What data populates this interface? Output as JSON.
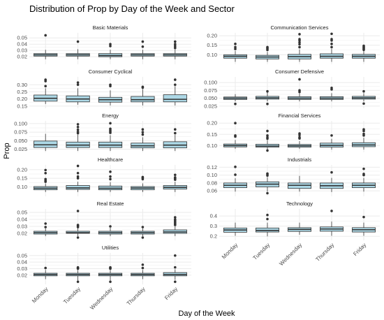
{
  "chart_data": {
    "type": "boxplot",
    "title": "Distribution of Prop by Day of the Week and Sector",
    "xlabel": "Day of the Week",
    "ylabel": "Prop",
    "categories": [
      "Monday",
      "Tuesday",
      "Wednesday",
      "Thursday",
      "Friday"
    ],
    "colors": {
      "box_fill": "#add8e6",
      "box_stroke": "#333333",
      "grid": "#ebebeb",
      "strip_text": "#1a1a1a",
      "axis_text": "#4d4d4d"
    },
    "panels": [
      {
        "sector": "Basic Materials",
        "ylim": [
          0.008,
          0.058
        ],
        "yticks": [
          {
            "v": 0.02,
            "label": "0.02"
          },
          {
            "v": 0.03,
            "label": "0.03"
          },
          {
            "v": 0.04,
            "label": "0.04"
          },
          {
            "v": 0.05,
            "label": "0.05"
          }
        ],
        "boxes": [
          {
            "min": 0.016,
            "q1": 0.021,
            "median": 0.023,
            "q3": 0.025,
            "max": 0.031,
            "outliers": [
              0.054
            ]
          },
          {
            "min": 0.016,
            "q1": 0.021,
            "median": 0.023,
            "q3": 0.025,
            "max": 0.032,
            "outliers": [
              0.044
            ]
          },
          {
            "min": 0.016,
            "q1": 0.02,
            "median": 0.022,
            "q3": 0.025,
            "max": 0.031,
            "outliers": [
              0.037,
              0.04
            ]
          },
          {
            "min": 0.016,
            "q1": 0.021,
            "median": 0.023,
            "q3": 0.025,
            "max": 0.031,
            "outliers": [
              0.036,
              0.044
            ]
          },
          {
            "min": 0.016,
            "q1": 0.021,
            "median": 0.023,
            "q3": 0.025,
            "max": 0.032,
            "outliers": [
              0.034,
              0.037,
              0.04,
              0.044
            ]
          }
        ]
      },
      {
        "sector": "Communication Services",
        "ylim": [
          0.05,
          0.215
        ],
        "yticks": [
          {
            "v": 0.1,
            "label": "0.10"
          },
          {
            "v": 0.15,
            "label": "0.15"
          },
          {
            "v": 0.2,
            "label": "0.20"
          }
        ],
        "boxes": [
          {
            "min": 0.063,
            "q1": 0.082,
            "median": 0.092,
            "q3": 0.1,
            "max": 0.12,
            "outliers": [
              0.13,
              0.14,
              0.157
            ]
          },
          {
            "min": 0.063,
            "q1": 0.078,
            "median": 0.088,
            "q3": 0.097,
            "max": 0.115,
            "outliers": [
              0.125,
              0.131,
              0.136,
              0.14
            ]
          },
          {
            "min": 0.063,
            "q1": 0.078,
            "median": 0.09,
            "q3": 0.102,
            "max": 0.128,
            "outliers": [
              0.14,
              0.155,
              0.165,
              0.175,
              0.182,
              0.208
            ]
          },
          {
            "min": 0.063,
            "q1": 0.082,
            "median": 0.092,
            "q3": 0.105,
            "max": 0.13,
            "outliers": [
              0.14,
              0.157,
              0.175,
              0.182,
              0.21
            ]
          },
          {
            "min": 0.063,
            "q1": 0.082,
            "median": 0.092,
            "q3": 0.102,
            "max": 0.122,
            "outliers": [
              0.126,
              0.131,
              0.136,
              0.141,
              0.147
            ]
          }
        ]
      },
      {
        "sector": "Consumer Cyclical",
        "ylim": [
          0.135,
          0.355
        ],
        "yticks": [
          {
            "v": 0.15,
            "label": "0.15"
          },
          {
            "v": 0.2,
            "label": "0.20"
          },
          {
            "v": 0.25,
            "label": "0.25"
          },
          {
            "v": 0.3,
            "label": "0.30"
          }
        ],
        "boxes": [
          {
            "min": 0.165,
            "q1": 0.185,
            "median": 0.205,
            "q3": 0.228,
            "max": 0.275,
            "outliers": [
              0.29,
              0.325,
              0.335
            ]
          },
          {
            "min": 0.16,
            "q1": 0.18,
            "median": 0.2,
            "q3": 0.222,
            "max": 0.275,
            "outliers": [
              0.3,
              0.315
            ]
          },
          {
            "min": 0.155,
            "q1": 0.178,
            "median": 0.195,
            "q3": 0.212,
            "max": 0.26,
            "outliers": [
              0.29,
              0.3
            ]
          },
          {
            "min": 0.155,
            "q1": 0.18,
            "median": 0.195,
            "q3": 0.218,
            "max": 0.27,
            "outliers": [
              0.28,
              0.285
            ]
          },
          {
            "min": 0.155,
            "q1": 0.18,
            "median": 0.198,
            "q3": 0.23,
            "max": 0.29,
            "outliers": [
              0.3,
              0.335
            ]
          }
        ]
      },
      {
        "sector": "Consumer Defensive",
        "ylim": [
          0.018,
          0.118
        ],
        "yticks": [
          {
            "v": 0.025,
            "label": "0.025"
          },
          {
            "v": 0.05,
            "label": "0.050"
          },
          {
            "v": 0.075,
            "label": "0.075"
          },
          {
            "v": 0.1,
            "label": "0.100"
          }
        ],
        "boxes": [
          {
            "min": 0.04,
            "q1": 0.046,
            "median": 0.05,
            "q3": 0.054,
            "max": 0.063,
            "outliers": [
              0.032
            ]
          },
          {
            "min": 0.04,
            "q1": 0.047,
            "median": 0.051,
            "q3": 0.056,
            "max": 0.068,
            "outliers": [
              0.072,
              0.032
            ]
          },
          {
            "min": 0.04,
            "q1": 0.046,
            "median": 0.05,
            "q3": 0.055,
            "max": 0.066,
            "outliers": [
              0.07,
              0.075,
              0.11
            ]
          },
          {
            "min": 0.04,
            "q1": 0.046,
            "median": 0.05,
            "q3": 0.055,
            "max": 0.066,
            "outliers": [
              0.078,
              0.083
            ]
          },
          {
            "min": 0.04,
            "q1": 0.047,
            "median": 0.051,
            "q3": 0.056,
            "max": 0.066,
            "outliers": [
              0.072,
              0.033
            ]
          }
        ]
      },
      {
        "sector": "Energy",
        "ylim": [
          0.016,
          0.108
        ],
        "yticks": [
          {
            "v": 0.025,
            "label": "0.025"
          },
          {
            "v": 0.05,
            "label": "0.050"
          },
          {
            "v": 0.075,
            "label": "0.075"
          },
          {
            "v": 0.1,
            "label": "0.100"
          }
        ],
        "boxes": [
          {
            "min": 0.02,
            "q1": 0.03,
            "median": 0.038,
            "q3": 0.049,
            "max": 0.07,
            "outliers": []
          },
          {
            "min": 0.02,
            "q1": 0.03,
            "median": 0.037,
            "q3": 0.046,
            "max": 0.068,
            "outliers": [
              0.072,
              0.076,
              0.082,
              0.09,
              0.098
            ]
          },
          {
            "min": 0.02,
            "q1": 0.03,
            "median": 0.037,
            "q3": 0.046,
            "max": 0.066,
            "outliers": [
              0.073,
              0.077,
              0.081,
              0.085,
              0.101
            ]
          },
          {
            "min": 0.02,
            "q1": 0.029,
            "median": 0.035,
            "q3": 0.043,
            "max": 0.06,
            "outliers": [
              0.068,
              0.075,
              0.083
            ]
          },
          {
            "min": 0.02,
            "q1": 0.029,
            "median": 0.037,
            "q3": 0.047,
            "max": 0.067,
            "outliers": [
              0.072,
              0.083
            ]
          }
        ]
      },
      {
        "sector": "Financial Services",
        "ylim": [
          0.07,
          0.21
        ],
        "yticks": [
          {
            "v": 0.1,
            "label": "0.10"
          },
          {
            "v": 0.15,
            "label": "0.15"
          },
          {
            "v": 0.2,
            "label": "0.20"
          }
        ],
        "boxes": [
          {
            "min": 0.085,
            "q1": 0.094,
            "median": 0.1,
            "q3": 0.107,
            "max": 0.125,
            "outliers": [
              0.14,
              0.145,
              0.2
            ]
          },
          {
            "min": 0.082,
            "q1": 0.093,
            "median": 0.098,
            "q3": 0.106,
            "max": 0.125,
            "outliers": [
              0.131,
              0.137,
              0.145,
              0.165,
              0.078
            ]
          },
          {
            "min": 0.085,
            "q1": 0.093,
            "median": 0.099,
            "q3": 0.105,
            "max": 0.12,
            "outliers": [
              0.132,
              0.137,
              0.147,
              0.154
            ]
          },
          {
            "min": 0.082,
            "q1": 0.093,
            "median": 0.101,
            "q3": 0.111,
            "max": 0.13,
            "outliers": [
              0.145
            ]
          },
          {
            "min": 0.082,
            "q1": 0.095,
            "median": 0.103,
            "q3": 0.113,
            "max": 0.135,
            "outliers": [
              0.145,
              0.152,
              0.165,
              0.172
            ]
          }
        ]
      },
      {
        "sector": "Healthcare",
        "ylim": [
          0.045,
          0.228
        ],
        "yticks": [
          {
            "v": 0.1,
            "label": "0.10"
          },
          {
            "v": 0.15,
            "label": "0.15"
          },
          {
            "v": 0.2,
            "label": "0.20"
          }
        ],
        "boxes": [
          {
            "min": 0.07,
            "q1": 0.083,
            "median": 0.092,
            "q3": 0.102,
            "max": 0.12,
            "outliers": [
              0.13,
              0.136,
              0.145,
              0.18,
              0.198
            ]
          },
          {
            "min": 0.07,
            "q1": 0.085,
            "median": 0.094,
            "q3": 0.108,
            "max": 0.13,
            "outliers": [
              0.15,
              0.16,
              0.18,
              0.222
            ]
          },
          {
            "min": 0.07,
            "q1": 0.083,
            "median": 0.092,
            "q3": 0.105,
            "max": 0.128,
            "outliers": [
              0.145,
              0.16,
              0.188
            ]
          },
          {
            "min": 0.07,
            "q1": 0.083,
            "median": 0.093,
            "q3": 0.102,
            "max": 0.12,
            "outliers": [
              0.145,
              0.152,
              0.157
            ]
          },
          {
            "min": 0.07,
            "q1": 0.087,
            "median": 0.097,
            "q3": 0.108,
            "max": 0.13,
            "outliers": [
              0.142,
              0.148,
              0.155,
              0.17
            ]
          }
        ]
      },
      {
        "sector": "Industrials",
        "ylim": [
          0.046,
          0.126
        ],
        "yticks": [
          {
            "v": 0.06,
            "label": "0.06"
          },
          {
            "v": 0.08,
            "label": "0.08"
          },
          {
            "v": 0.1,
            "label": "0.10"
          },
          {
            "v": 0.12,
            "label": "0.12"
          }
        ],
        "boxes": [
          {
            "min": 0.058,
            "q1": 0.068,
            "median": 0.074,
            "q3": 0.08,
            "max": 0.092,
            "outliers": [
              0.101,
              0.121
            ]
          },
          {
            "min": 0.058,
            "q1": 0.07,
            "median": 0.077,
            "q3": 0.083,
            "max": 0.095,
            "outliers": [
              0.099,
              0.102,
              0.104,
              0.054
            ]
          },
          {
            "min": 0.058,
            "q1": 0.066,
            "median": 0.074,
            "q3": 0.08,
            "max": 0.098,
            "outliers": []
          },
          {
            "min": 0.057,
            "q1": 0.066,
            "median": 0.073,
            "q3": 0.08,
            "max": 0.093,
            "outliers": [
              0.107
            ]
          },
          {
            "min": 0.058,
            "q1": 0.068,
            "median": 0.074,
            "q3": 0.08,
            "max": 0.093,
            "outliers": [
              0.1,
              0.103,
              0.116
            ]
          }
        ]
      },
      {
        "sector": "Real Estate",
        "ylim": [
          0.01,
          0.055
        ],
        "yticks": [
          {
            "v": 0.02,
            "label": "0.02"
          },
          {
            "v": 0.03,
            "label": "0.03"
          },
          {
            "v": 0.04,
            "label": "0.04"
          },
          {
            "v": 0.05,
            "label": "0.05"
          }
        ],
        "boxes": [
          {
            "min": 0.016,
            "q1": 0.019,
            "median": 0.021,
            "q3": 0.023,
            "max": 0.027,
            "outliers": [
              0.029,
              0.034
            ]
          },
          {
            "min": 0.016,
            "q1": 0.02,
            "median": 0.021,
            "q3": 0.023,
            "max": 0.028,
            "outliers": [
              0.029,
              0.031,
              0.032,
              0.052,
              0.014
            ]
          },
          {
            "min": 0.016,
            "q1": 0.019,
            "median": 0.021,
            "q3": 0.023,
            "max": 0.028,
            "outliers": [
              0.03
            ]
          },
          {
            "min": 0.016,
            "q1": 0.019,
            "median": 0.021,
            "q3": 0.023,
            "max": 0.027,
            "outliers": [
              0.029,
              0.014
            ]
          },
          {
            "min": 0.016,
            "q1": 0.02,
            "median": 0.022,
            "q3": 0.025,
            "max": 0.03,
            "outliers": [
              0.032,
              0.034,
              0.036,
              0.038,
              0.04,
              0.043
            ]
          }
        ]
      },
      {
        "sector": "Technology",
        "ylim": [
          0.16,
          0.47
        ],
        "yticks": [
          {
            "v": 0.2,
            "label": "0.2"
          },
          {
            "v": 0.3,
            "label": "0.3"
          },
          {
            "v": 0.4,
            "label": "0.4"
          }
        ],
        "boxes": [
          {
            "min": 0.205,
            "q1": 0.24,
            "median": 0.262,
            "q3": 0.282,
            "max": 0.335,
            "outliers": []
          },
          {
            "min": 0.2,
            "q1": 0.242,
            "median": 0.258,
            "q3": 0.282,
            "max": 0.335,
            "outliers": [
              0.37,
              0.41
            ]
          },
          {
            "min": 0.215,
            "q1": 0.248,
            "median": 0.268,
            "q3": 0.285,
            "max": 0.335,
            "outliers": []
          },
          {
            "min": 0.205,
            "q1": 0.25,
            "median": 0.272,
            "q3": 0.292,
            "max": 0.345,
            "outliers": [
              0.45
            ]
          },
          {
            "min": 0.205,
            "q1": 0.242,
            "median": 0.265,
            "q3": 0.285,
            "max": 0.335,
            "outliers": [
              0.39
            ]
          }
        ]
      },
      {
        "sector": "Utilities",
        "ylim": [
          0.006,
          0.054
        ],
        "yticks": [
          {
            "v": 0.02,
            "label": "0.02"
          },
          {
            "v": 0.03,
            "label": "0.03"
          },
          {
            "v": 0.04,
            "label": "0.04"
          },
          {
            "v": 0.05,
            "label": "0.05"
          }
        ],
        "boxes": [
          {
            "min": 0.014,
            "q1": 0.019,
            "median": 0.021,
            "q3": 0.023,
            "max": 0.028,
            "outliers": [
              0.031
            ]
          },
          {
            "min": 0.012,
            "q1": 0.019,
            "median": 0.021,
            "q3": 0.023,
            "max": 0.028,
            "outliers": [
              0.03,
              0.031,
              0.032,
              0.01
            ]
          },
          {
            "min": 0.012,
            "q1": 0.019,
            "median": 0.021,
            "q3": 0.023,
            "max": 0.028,
            "outliers": [
              0.03,
              0.031,
              0.032,
              0.01
            ]
          },
          {
            "min": 0.014,
            "q1": 0.019,
            "median": 0.021,
            "q3": 0.023,
            "max": 0.028,
            "outliers": [
              0.031,
              0.036
            ]
          },
          {
            "min": 0.013,
            "q1": 0.019,
            "median": 0.021,
            "q3": 0.024,
            "max": 0.029,
            "outliers": [
              0.032,
              0.05,
              0.01
            ]
          }
        ]
      }
    ]
  }
}
